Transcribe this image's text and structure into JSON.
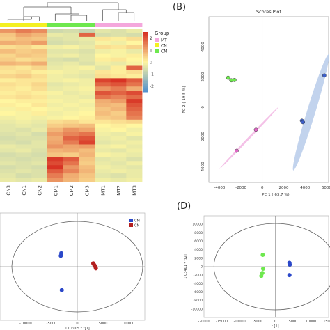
{
  "chart_data": [
    {
      "type": "heatmap",
      "panel": "A",
      "samples": [
        "CN3",
        "CN1",
        "CN2",
        "CM1",
        "CM2",
        "CM3",
        "MT1",
        "MT2",
        "MT3"
      ],
      "sample_groups": [
        "CN",
        "CN",
        "CN",
        "CM",
        "CM",
        "CM",
        "MT",
        "MT",
        "MT"
      ],
      "legend": {
        "title": "Group",
        "groups": [
          {
            "name": "MT",
            "color": "#f4a7dc"
          },
          {
            "name": "CN",
            "color": "#f4f021"
          },
          {
            "name": "CM",
            "color": "#6ee84e"
          }
        ]
      },
      "color_scale": {
        "ticks": [
          2,
          1,
          0,
          -1,
          -2
        ],
        "low": "#4f8fcf",
        "mid": "#fff6a0",
        "high": "#d62b1f",
        "range": [
          -2.5,
          2.5
        ]
      },
      "rows": [
        [
          1.2,
          1.5,
          1.3,
          -0.7,
          -0.6,
          -0.8,
          -0.4,
          -0.5,
          -0.3
        ],
        [
          0.6,
          1.0,
          0.8,
          -0.3,
          -0.4,
          1.8,
          -0.6,
          -0.5,
          -0.6
        ],
        [
          0.5,
          0.7,
          0.6,
          -0.5,
          -0.4,
          -0.3,
          0.2,
          0.1,
          0.3
        ],
        [
          0.9,
          0.8,
          1.1,
          -0.6,
          -0.5,
          -0.4,
          -0.1,
          -0.2,
          0.0
        ],
        [
          0.3,
          0.4,
          0.2,
          -0.2,
          -0.1,
          -0.3,
          0.3,
          0.2,
          0.4
        ],
        [
          0.7,
          0.5,
          0.6,
          -0.4,
          -0.4,
          -0.5,
          -0.2,
          -0.1,
          -0.3
        ],
        [
          0.4,
          0.6,
          0.5,
          -0.3,
          -0.2,
          -0.4,
          0.0,
          -0.1,
          0.1
        ],
        [
          0.5,
          0.3,
          0.4,
          -0.5,
          -0.6,
          -0.4,
          0.1,
          0.2,
          0.0
        ],
        [
          0.8,
          0.7,
          0.9,
          -0.4,
          -0.3,
          -0.5,
          -0.2,
          -0.3,
          -0.1
        ],
        [
          0.3,
          0.2,
          0.4,
          -0.3,
          -0.2,
          -0.1,
          -0.4,
          0.1,
          1.8
        ],
        [
          0.2,
          0.3,
          0.1,
          -0.1,
          -0.2,
          -0.3,
          0.2,
          0.1,
          0.3
        ],
        [
          0.4,
          0.5,
          0.3,
          -0.2,
          -0.3,
          -0.4,
          0.3,
          0.2,
          0.1
        ],
        [
          0.1,
          0.2,
          0.2,
          -0.2,
          -0.1,
          -0.2,
          2.2,
          2.4,
          1.9
        ],
        [
          0.3,
          0.2,
          0.4,
          -0.4,
          -0.3,
          -0.2,
          1.8,
          2.0,
          1.6
        ],
        [
          0.2,
          0.1,
          0.3,
          -0.3,
          -0.2,
          -0.1,
          1.2,
          1.5,
          0.9
        ],
        [
          0.1,
          0.2,
          0.1,
          -0.1,
          -0.3,
          -0.2,
          2.0,
          1.8,
          2.1
        ],
        [
          0.2,
          0.3,
          0.2,
          -0.2,
          -0.2,
          -0.3,
          1.6,
          1.4,
          1.7
        ],
        [
          0.0,
          0.1,
          0.1,
          -0.1,
          -0.2,
          -0.1,
          0.9,
          1.1,
          2.3
        ],
        [
          0.1,
          0.0,
          0.2,
          -0.2,
          -0.1,
          -0.2,
          0.8,
          0.7,
          2.0
        ],
        [
          -0.1,
          0.1,
          0.0,
          -0.1,
          -0.2,
          -0.1,
          0.6,
          0.8,
          1.8
        ],
        [
          0.0,
          -0.1,
          0.1,
          -0.2,
          -0.1,
          0.0,
          0.7,
          0.5,
          1.6
        ],
        [
          -0.2,
          -0.1,
          -0.2,
          -0.1,
          0.0,
          0.1,
          0.5,
          0.6,
          1.4
        ],
        [
          -0.3,
          -0.2,
          -0.3,
          0.3,
          0.4,
          0.2,
          0.2,
          0.3,
          0.4
        ],
        [
          -0.4,
          -0.3,
          -0.4,
          0.5,
          0.6,
          0.7,
          0.0,
          0.1,
          0.0
        ],
        [
          -0.4,
          -0.5,
          -0.3,
          0.8,
          1.2,
          1.0,
          -0.1,
          0.0,
          -0.2
        ],
        [
          -0.5,
          -0.4,
          -0.6,
          1.1,
          1.4,
          1.6,
          -0.2,
          -0.3,
          -0.1
        ],
        [
          -0.6,
          -0.5,
          -0.5,
          0.9,
          1.8,
          2.0,
          -0.3,
          -0.2,
          -0.4
        ],
        [
          -0.5,
          -0.6,
          -0.4,
          1.0,
          1.5,
          2.2,
          -0.4,
          -0.3,
          -0.2
        ],
        [
          -0.3,
          -0.4,
          -0.4,
          1.2,
          1.0,
          1.1,
          -0.2,
          -0.1,
          -0.3
        ],
        [
          -0.4,
          -0.3,
          -0.5,
          0.8,
          0.9,
          0.7,
          -0.3,
          -0.4,
          -0.2
        ],
        [
          -0.6,
          -0.5,
          -0.6,
          0.6,
          0.5,
          0.8,
          -0.1,
          -0.2,
          -0.3
        ],
        [
          -0.5,
          -0.6,
          -0.5,
          2.3,
          1.9,
          0.6,
          -0.4,
          -0.3,
          -0.5
        ],
        [
          -0.4,
          -0.5,
          -0.4,
          2.1,
          1.6,
          0.5,
          -0.3,
          -0.4,
          -0.2
        ],
        [
          -0.6,
          -0.5,
          -0.6,
          2.4,
          1.2,
          0.7,
          -0.2,
          -0.3,
          -0.4
        ],
        [
          -0.5,
          -0.4,
          -0.5,
          1.9,
          1.4,
          0.8,
          -0.3,
          -0.2,
          -0.3
        ],
        [
          -0.4,
          -0.6,
          -0.5,
          1.5,
          0.9,
          0.6,
          -0.4,
          -0.5,
          -0.3
        ],
        [
          -0.3,
          -0.4,
          -0.3,
          1.2,
          0.8,
          0.5,
          -0.2,
          -0.3,
          -0.2
        ]
      ]
    },
    {
      "type": "scatter",
      "panel": "B",
      "title": "Scores Plot",
      "xlabel": "PC 1 ( 63.7 %)",
      "ylabel": "PC 2 ( 19.5 %)",
      "xlim": [
        -5000,
        6200
      ],
      "ylim": [
        -5000,
        6000
      ],
      "xticks": [
        -4000,
        -2000,
        0,
        2000,
        4000,
        6000
      ],
      "yticks": [
        -4000,
        -2000,
        0,
        2000,
        4000
      ],
      "series": [
        {
          "color": "#6ee84e",
          "points": [
            [
              -3200,
              1950
            ],
            [
              -2900,
              1780
            ],
            [
              -2600,
              1800
            ]
          ]
        },
        {
          "color": "#e066c6",
          "points": [
            [
              -2400,
              -2900
            ],
            [
              -600,
              -1500
            ]
          ]
        },
        {
          "color": "#3d5fc9",
          "points": [
            [
              3700,
              -900
            ],
            [
              3800,
              -1000
            ],
            [
              5800,
              2100
            ]
          ]
        }
      ],
      "ellipses": [
        {
          "color": "#f2b6e3",
          "center": [
            -1500,
            -2200
          ],
          "ends": [
            [
              -4000,
              -4100
            ],
            [
              1500,
              0
            ]
          ]
        },
        {
          "color": "#b7cbea",
          "center": [
            4300,
            0
          ],
          "ends": [
            [
              2900,
              -4200
            ],
            [
              6200,
              3500
            ]
          ]
        }
      ]
    },
    {
      "type": "scatter",
      "panel": "C",
      "xlabel": "1.01905 * t[1]",
      "xlim": [
        -12000,
        12000
      ],
      "ylim": [
        -5000,
        5000
      ],
      "xticks": [
        -10000,
        -5000,
        0,
        5000,
        10000
      ],
      "legend": [
        {
          "name": "CM",
          "color": "#2b48c9"
        },
        {
          "name": "CN",
          "color": "#b31f1f"
        }
      ],
      "series": [
        {
          "color": "#2b48c9",
          "points": [
            [
              -3200,
              1300
            ],
            [
              -3100,
              1600
            ],
            [
              -3000,
              -2800
            ]
          ]
        },
        {
          "color": "#b31f1f",
          "points": [
            [
              3100,
              400
            ],
            [
              3300,
              200
            ],
            [
              3500,
              0
            ],
            [
              3600,
              -200
            ]
          ]
        }
      ]
    },
    {
      "type": "scatter",
      "panel": "D",
      "xlabel": "t [1]",
      "ylabel": "1.03401 * t[2]",
      "xlim": [
        -20000,
        15000
      ],
      "ylim": [
        -12000,
        12000
      ],
      "xticks": [
        -20000,
        -15000,
        -10000,
        -5000,
        0,
        5000,
        10000,
        15000
      ],
      "yticks": [
        10000,
        8000,
        6000,
        4000,
        2000,
        0,
        -2000,
        -4000,
        -6000,
        -8000,
        -10000
      ],
      "series": [
        {
          "color": "#6ee84e",
          "points": [
            [
              -3500,
              2800
            ],
            [
              -3400,
              -500
            ],
            [
              -3600,
              -1500
            ],
            [
              -3900,
              -2200
            ]
          ]
        },
        {
          "color": "#2b48c9",
          "points": [
            [
              4000,
              900
            ],
            [
              4100,
              500
            ],
            [
              4000,
              -2000
            ]
          ]
        }
      ]
    }
  ],
  "panel_labels": {
    "b": "(B)",
    "d": "(D)"
  }
}
